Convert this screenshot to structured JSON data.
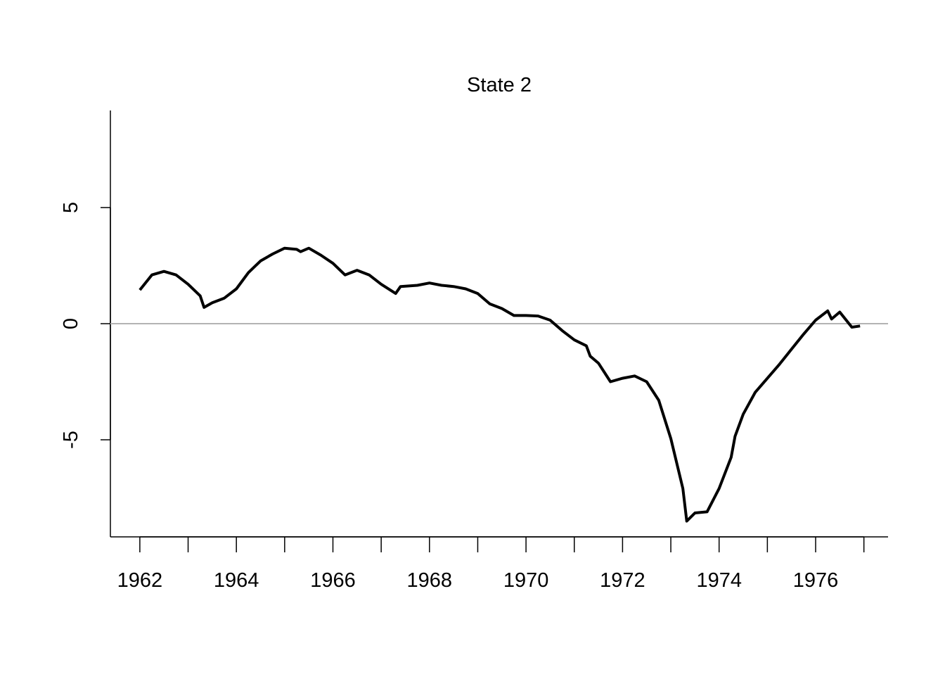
{
  "chart_data": {
    "type": "line",
    "title": "State 2",
    "x": [
      1962.0,
      1962.25,
      1962.5,
      1962.75,
      1963.0,
      1963.25,
      1963.33,
      1963.5,
      1963.75,
      1964.0,
      1964.25,
      1964.5,
      1964.75,
      1965.0,
      1965.25,
      1965.33,
      1965.5,
      1965.75,
      1966.0,
      1966.25,
      1966.5,
      1966.75,
      1967.0,
      1967.3,
      1967.4,
      1967.75,
      1968.0,
      1968.25,
      1968.5,
      1968.75,
      1969.0,
      1969.25,
      1969.5,
      1969.75,
      1970.0,
      1970.25,
      1970.5,
      1970.75,
      1971.0,
      1971.25,
      1971.33,
      1971.5,
      1971.75,
      1972.0,
      1972.25,
      1972.5,
      1972.75,
      1973.0,
      1973.25,
      1973.33,
      1973.5,
      1973.75,
      1974.0,
      1974.25,
      1974.33,
      1974.5,
      1974.75,
      1975.0,
      1975.25,
      1975.5,
      1975.75,
      1976.0,
      1976.25,
      1976.33,
      1976.5,
      1976.75,
      1976.92
    ],
    "series": [
      {
        "color": "#000000",
        "values": [
          1.45,
          2.1,
          2.25,
          2.1,
          1.7,
          1.2,
          0.7,
          0.9,
          1.1,
          1.5,
          2.2,
          2.7,
          3.0,
          3.25,
          3.2,
          3.1,
          3.25,
          2.95,
          2.6,
          2.1,
          2.3,
          2.1,
          1.7,
          1.3,
          1.6,
          1.65,
          1.75,
          1.65,
          1.6,
          1.5,
          1.3,
          0.85,
          0.65,
          0.35,
          0.35,
          0.33,
          0.15,
          -0.3,
          -0.7,
          -0.95,
          -1.4,
          -1.7,
          -2.5,
          -2.35,
          -2.25,
          -2.5,
          -3.3,
          -4.95,
          -7.1,
          -8.5,
          -8.15,
          -8.1,
          -7.1,
          -5.75,
          -4.85,
          -3.9,
          -2.95,
          -2.35,
          -1.75,
          -1.1,
          -0.45,
          0.15,
          0.55,
          0.2,
          0.5,
          -0.15,
          -0.1
        ]
      }
    ],
    "xlim": [
      1961.39,
      1977.5
    ],
    "ylim": [
      -9.18,
      9.18
    ],
    "xticks": [
      1962,
      1964,
      1966,
      1968,
      1970,
      1972,
      1974,
      1976
    ],
    "xminorticks": [
      1963,
      1965,
      1967,
      1969,
      1971,
      1973,
      1975,
      1977
    ],
    "yticks": [
      -5,
      0,
      5
    ],
    "hline": 0,
    "hline_color": "#b3b3b3"
  }
}
